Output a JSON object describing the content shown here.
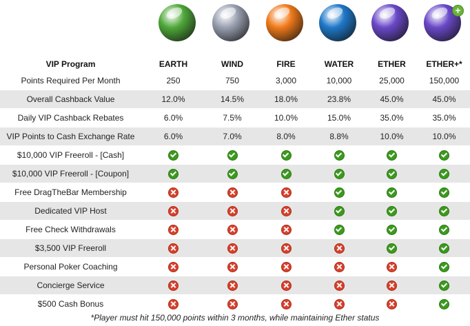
{
  "header": {
    "program_label": "VIP Program",
    "tiers": [
      "EARTH",
      "WIND",
      "FIRE",
      "WATER",
      "ETHER",
      "ETHER+*"
    ]
  },
  "orb_colors": [
    "#4fa83a",
    "#9aa0b0",
    "#f07a1a",
    "#1e78c8",
    "#6a48c8",
    "#6a48c8"
  ],
  "colors": {
    "check": "#3c9a1e",
    "cross": "#d9402b",
    "alt_row": "#e6e6e6"
  },
  "value_rows": [
    {
      "label": "Points Required Per Month",
      "values": [
        "250",
        "750",
        "3,000",
        "10,000",
        "25,000",
        "150,000"
      ]
    },
    {
      "label": "Overall Cashback Value",
      "values": [
        "12.0%",
        "14.5%",
        "18.0%",
        "23.8%",
        "45.0%",
        "45.0%"
      ]
    },
    {
      "label": "Daily VIP Cashback Rebates",
      "values": [
        "6.0%",
        "7.5%",
        "10.0%",
        "15.0%",
        "35.0%",
        "35.0%"
      ]
    },
    {
      "label": "VIP Points to Cash Exchange Rate",
      "values": [
        "6.0%",
        "7.0%",
        "8.0%",
        "8.8%",
        "10.0%",
        "10.0%"
      ]
    }
  ],
  "feature_rows": [
    {
      "label": "$10,000 VIP Freeroll - [Cash]",
      "values": [
        true,
        true,
        true,
        true,
        true,
        true
      ]
    },
    {
      "label": "$10,000 VIP Freeroll - [Coupon]",
      "values": [
        true,
        true,
        true,
        true,
        true,
        true
      ]
    },
    {
      "label": "Free DragTheBar Membership",
      "values": [
        false,
        false,
        false,
        true,
        true,
        true
      ]
    },
    {
      "label": "Dedicated VIP Host",
      "values": [
        false,
        false,
        false,
        true,
        true,
        true
      ]
    },
    {
      "label": "Free Check Withdrawals",
      "values": [
        false,
        false,
        false,
        true,
        true,
        true
      ]
    },
    {
      "label": "$3,500 VIP Freeroll",
      "values": [
        false,
        false,
        false,
        false,
        true,
        true
      ]
    },
    {
      "label": "Personal Poker Coaching",
      "values": [
        false,
        false,
        false,
        false,
        false,
        true
      ]
    },
    {
      "label": "Concierge Service",
      "values": [
        false,
        false,
        false,
        false,
        false,
        true
      ]
    },
    {
      "label": "$500 Cash Bonus",
      "values": [
        false,
        false,
        false,
        false,
        false,
        true
      ]
    }
  ],
  "footnote": "*Player must hit 150,000 points within 3 months, while maintaining Ether status",
  "plus_badge": "+"
}
